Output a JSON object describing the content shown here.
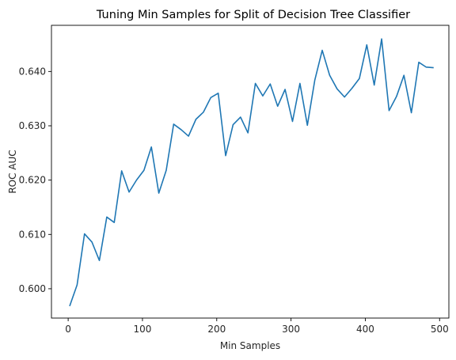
{
  "chart_data": {
    "type": "line",
    "title": "Tuning Min Samples for Split of Decision Tree Classifier",
    "xlabel": "Min Samples",
    "ylabel": "ROC AUC",
    "xlim": [
      -22.5,
      512.5
    ],
    "ylim": [
      0.5946,
      0.6485
    ],
    "xticks": [
      0,
      100,
      200,
      300,
      400,
      500
    ],
    "xtick_labels": [
      "0",
      "100",
      "200",
      "300",
      "400",
      "500"
    ],
    "yticks": [
      0.6,
      0.61,
      0.62,
      0.63,
      0.64
    ],
    "ytick_labels": [
      "0.600",
      "0.610",
      "0.620",
      "0.630",
      "0.640"
    ],
    "grid": false,
    "series": [
      {
        "color": "#1f77b4",
        "x": [
          2,
          12,
          22,
          32,
          42,
          52,
          62,
          72,
          82,
          92,
          102,
          112,
          122,
          132,
          142,
          152,
          162,
          172,
          182,
          192,
          202,
          212,
          222,
          232,
          242,
          252,
          262,
          272,
          282,
          292,
          302,
          312,
          322,
          332,
          342,
          352,
          362,
          372,
          382,
          392,
          402,
          412,
          422,
          432,
          442,
          452,
          462,
          472,
          482,
          492
        ],
        "values": [
          0.5968,
          0.6007,
          0.6101,
          0.6086,
          0.6052,
          0.6132,
          0.6122,
          0.6217,
          0.6178,
          0.62,
          0.6218,
          0.6261,
          0.6176,
          0.6218,
          0.6303,
          0.6293,
          0.6281,
          0.6312,
          0.6325,
          0.6352,
          0.636,
          0.6245,
          0.6302,
          0.6316,
          0.6287,
          0.6378,
          0.6355,
          0.6377,
          0.6336,
          0.6367,
          0.6308,
          0.6378,
          0.6301,
          0.6384,
          0.6439,
          0.6393,
          0.6368,
          0.6353,
          0.6369,
          0.6387,
          0.6449,
          0.6375,
          0.646,
          0.6328,
          0.6354,
          0.6393,
          0.6324,
          0.6417,
          0.6408,
          0.6407
        ]
      }
    ]
  }
}
